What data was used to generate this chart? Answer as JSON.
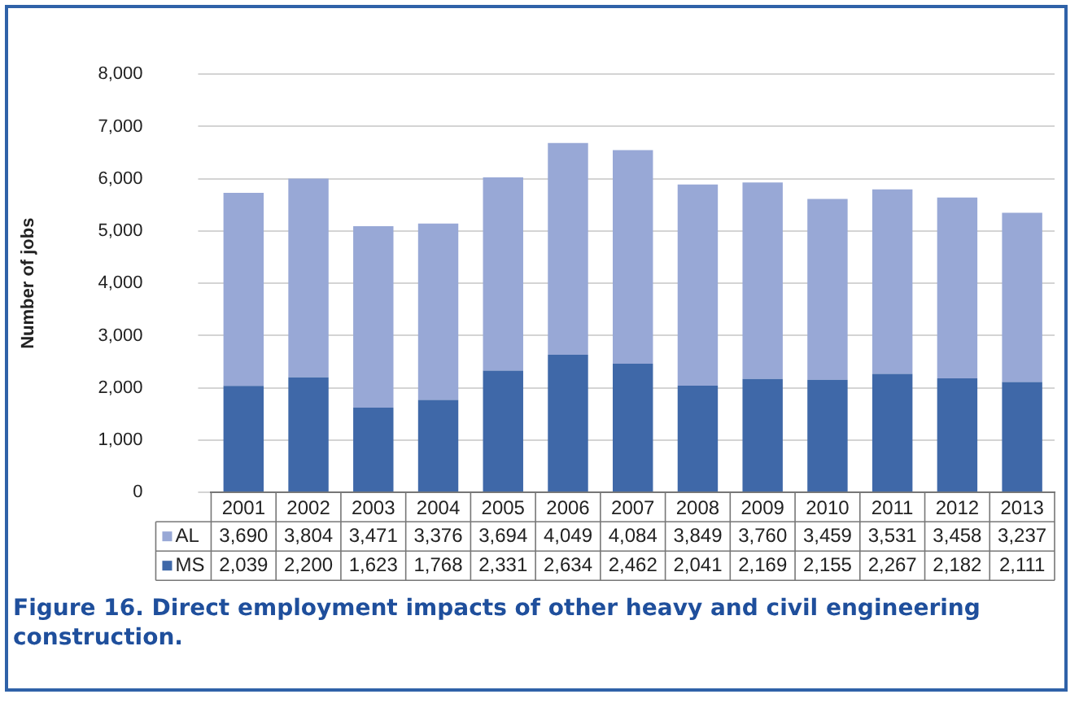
{
  "chart_data": {
    "type": "bar",
    "stacked": true,
    "ylabel": "Number of jobs",
    "categories": [
      "2001",
      "2002",
      "2003",
      "2004",
      "2005",
      "2006",
      "2007",
      "2008",
      "2009",
      "2010",
      "2011",
      "2012",
      "2013"
    ],
    "series": [
      {
        "name": "MS",
        "color": "#3f68a8",
        "values": [
          2039,
          2200,
          1623,
          1768,
          2331,
          2634,
          2462,
          2041,
          2169,
          2155,
          2267,
          2182,
          2111
        ],
        "value_labels": [
          "2,039",
          "2,200",
          "1,623",
          "1,768",
          "2,331",
          "2,634",
          "2,462",
          "2,041",
          "2,169",
          "2,155",
          "2,267",
          "2,182",
          "2,111"
        ]
      },
      {
        "name": "AL",
        "color": "#98a8d6",
        "values": [
          3690,
          3804,
          3471,
          3376,
          3694,
          4049,
          4084,
          3849,
          3760,
          3459,
          3531,
          3458,
          3237
        ],
        "value_labels": [
          "3,690",
          "3,804",
          "3,471",
          "3,376",
          "3,694",
          "4,049",
          "4,084",
          "3,849",
          "3,760",
          "3,459",
          "3,531",
          "3,458",
          "3,237"
        ]
      }
    ],
    "ylim": [
      0,
      8000
    ],
    "yticks": [
      0,
      {
        "value": 1000,
        "label": "1,000"
      },
      {
        "value": 2000,
        "label": "2,000"
      },
      {
        "value": 3000,
        "label": "3,000"
      },
      {
        "value": 4000,
        "label": "4,000"
      },
      {
        "value": 5000,
        "label": "5,000"
      },
      {
        "value": 6000,
        "label": "6,000"
      },
      {
        "value": 7000,
        "label": "7,000"
      },
      {
        "value": 8000,
        "label": "8,000"
      }
    ],
    "grid": "y",
    "legend": "bottom",
    "annotations": [
      "Figure 16. Direct employment impacts of other heavy and civil engineering construction."
    ]
  }
}
